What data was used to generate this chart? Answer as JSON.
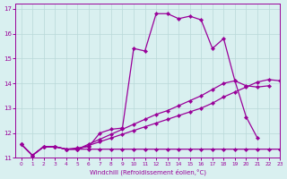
{
  "xlabel": "Windchill (Refroidissement éolien,°C)",
  "xlim": [
    -0.5,
    23
  ],
  "ylim": [
    11,
    17.2
  ],
  "yticks": [
    11,
    12,
    13,
    14,
    15,
    16,
    17
  ],
  "xticks": [
    0,
    1,
    2,
    3,
    4,
    5,
    6,
    7,
    8,
    9,
    10,
    11,
    12,
    13,
    14,
    15,
    16,
    17,
    18,
    19,
    20,
    21,
    22,
    23
  ],
  "bg_color": "#d9f0f0",
  "line_color": "#990099",
  "grid_color": "#b8d8d8",
  "marker": "D",
  "markersize": 2.2,
  "linewidth": 0.9,
  "line1_x": [
    0,
    1,
    2,
    3,
    4,
    5,
    6,
    7,
    8,
    9,
    10,
    11,
    12,
    13,
    14,
    15,
    16,
    17,
    18,
    19,
    20,
    21
  ],
  "line1_y": [
    11.55,
    11.1,
    11.45,
    11.45,
    11.35,
    11.4,
    11.45,
    12.0,
    12.15,
    12.2,
    15.4,
    15.3,
    16.8,
    16.8,
    16.6,
    16.7,
    16.55,
    15.4,
    15.8,
    14.1,
    12.65,
    11.8
  ],
  "line2_x": [
    0,
    1,
    2,
    3,
    4,
    5,
    6,
    7,
    8,
    9,
    10,
    11,
    12,
    13,
    14,
    15,
    16,
    17,
    18,
    19,
    20,
    21,
    22,
    23
  ],
  "line2_y": [
    11.55,
    11.1,
    11.45,
    11.45,
    11.35,
    11.35,
    11.35,
    11.35,
    11.35,
    11.35,
    11.35,
    11.35,
    11.35,
    11.35,
    11.35,
    11.35,
    11.35,
    11.35,
    11.35,
    11.35,
    11.35,
    11.35,
    11.35,
    11.35
  ],
  "line3_x": [
    0,
    1,
    2,
    3,
    4,
    5,
    6,
    7,
    8,
    9,
    10,
    11,
    12,
    13,
    14,
    15,
    16,
    17,
    18,
    19,
    20,
    21,
    22
  ],
  "line3_y": [
    11.55,
    11.1,
    11.45,
    11.45,
    11.35,
    11.35,
    11.55,
    11.75,
    11.95,
    12.15,
    12.35,
    12.55,
    12.75,
    12.9,
    13.1,
    13.3,
    13.5,
    13.75,
    14.0,
    14.1,
    13.9,
    13.85,
    13.9
  ],
  "line4_x": [
    0,
    1,
    2,
    3,
    4,
    5,
    6,
    7,
    8,
    9,
    10,
    11,
    12,
    13,
    14,
    15,
    16,
    17,
    18,
    19,
    20,
    21,
    22,
    23
  ],
  "line4_y": [
    11.55,
    11.1,
    11.45,
    11.45,
    11.35,
    11.35,
    11.5,
    11.65,
    11.8,
    11.95,
    12.1,
    12.25,
    12.4,
    12.55,
    12.7,
    12.85,
    13.0,
    13.2,
    13.45,
    13.65,
    13.85,
    14.05,
    14.15,
    14.1
  ]
}
